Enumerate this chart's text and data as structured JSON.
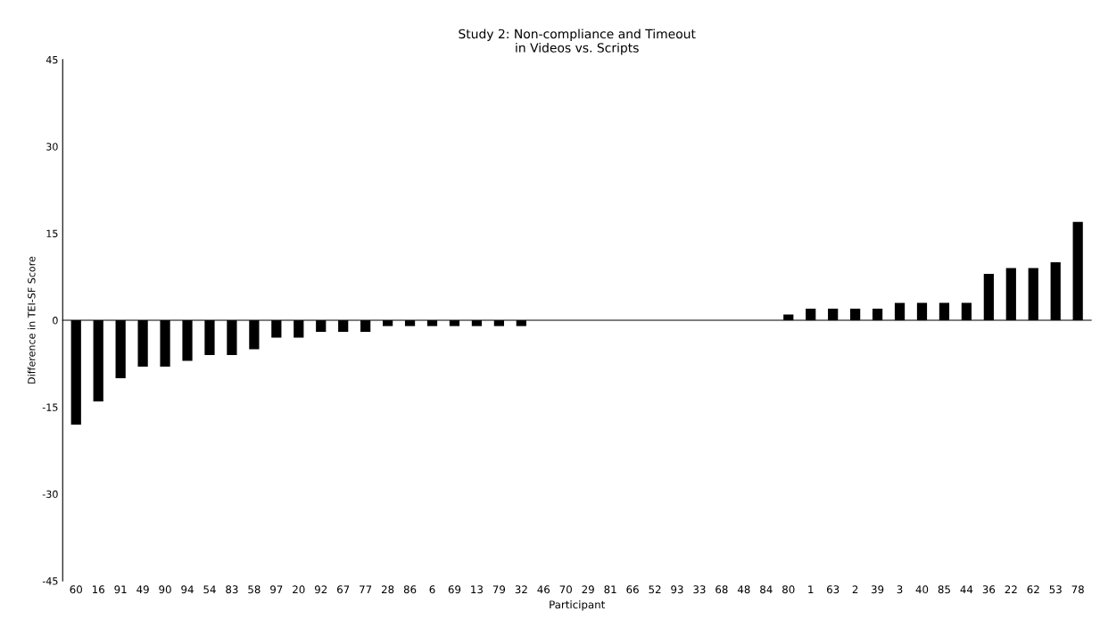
{
  "chart_data": {
    "type": "bar",
    "title": "Study 2: Non-compliance and Timeout\nin Videos vs. Scripts",
    "xlabel": "Participant",
    "ylabel": "Difference in TEI-SF Score",
    "categories": [
      "60",
      "16",
      "91",
      "49",
      "90",
      "94",
      "54",
      "83",
      "58",
      "97",
      "20",
      "92",
      "67",
      "77",
      "28",
      "86",
      "6",
      "69",
      "13",
      "79",
      "32",
      "46",
      "70",
      "29",
      "81",
      "66",
      "52",
      "93",
      "33",
      "68",
      "48",
      "84",
      "80",
      "1",
      "63",
      "2",
      "39",
      "3",
      "40",
      "85",
      "44",
      "36",
      "22",
      "62",
      "53",
      "78"
    ],
    "values": [
      -18,
      -14,
      -10,
      -8,
      -8,
      -7,
      -6,
      -6,
      -5,
      -3,
      -3,
      -2,
      -2,
      -2,
      -1,
      -1,
      -1,
      -1,
      -1,
      -1,
      -1,
      0,
      0,
      0,
      0,
      0,
      0,
      0,
      0,
      0,
      0,
      0,
      1,
      2,
      2,
      2,
      2,
      3,
      3,
      3,
      3,
      8,
      9,
      9,
      10,
      17
    ],
    "color": "#000000",
    "ylim": [
      -45,
      45
    ],
    "yticks": [
      -45,
      -30,
      -15,
      0,
      15,
      30,
      45
    ]
  }
}
